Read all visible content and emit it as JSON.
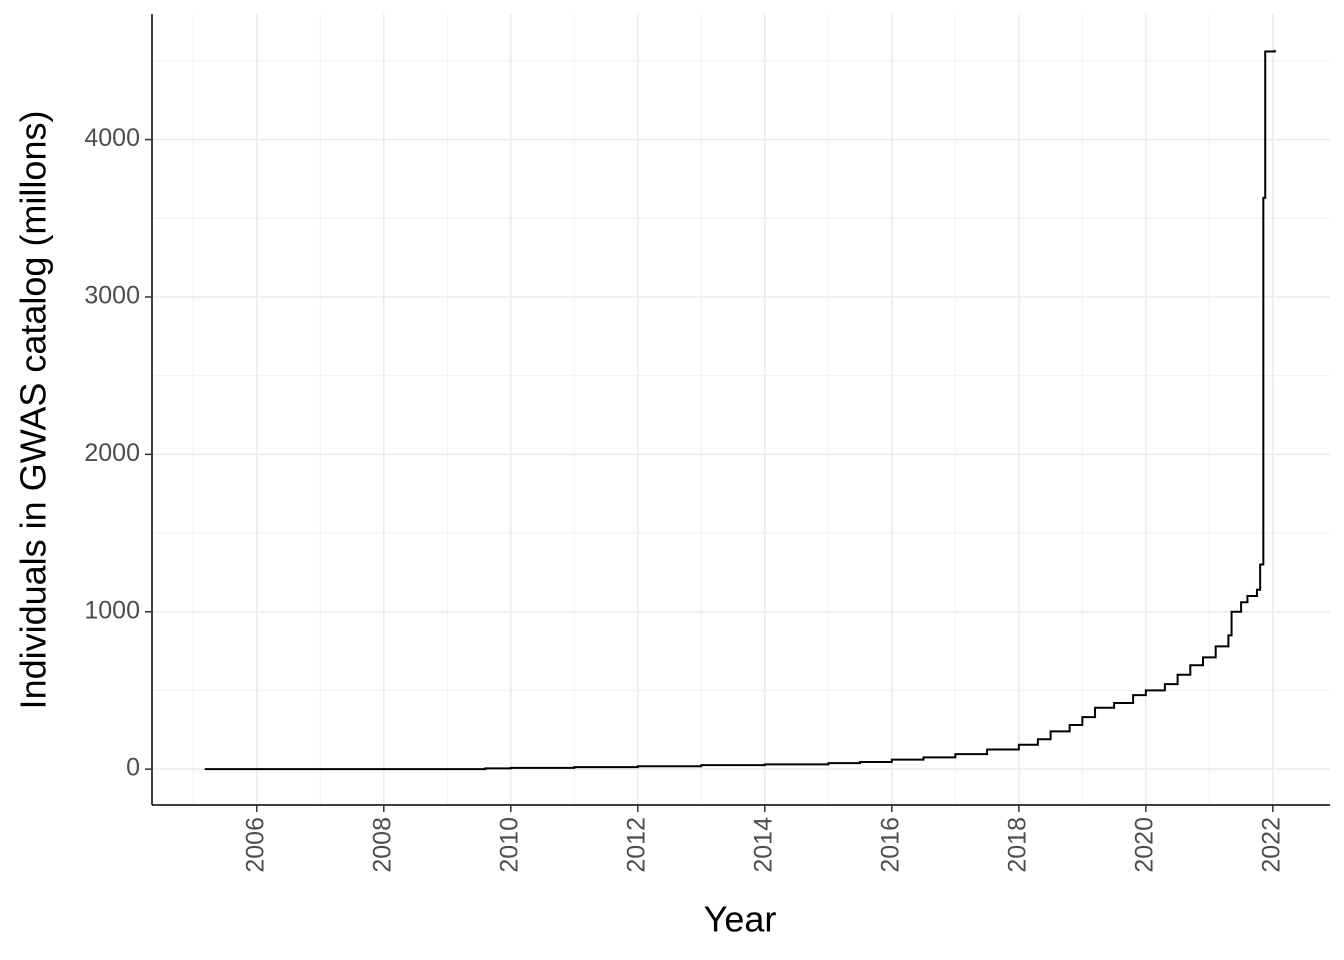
{
  "chart_data": {
    "type": "step",
    "x_label": "Year",
    "y_label": "Individuals in GWAS catalog (millons)",
    "x": [
      2005.18,
      2009.6,
      2010,
      2011,
      2012,
      2013,
      2014,
      2015,
      2015.5,
      2016,
      2016.5,
      2017,
      2017.5,
      2018,
      2018.3,
      2018.5,
      2018.8,
      2019,
      2019.2,
      2019.5,
      2019.8,
      2020,
      2020.3,
      2020.5,
      2020.7,
      2020.9,
      2021.1,
      2021.3,
      2021.35,
      2021.5,
      2021.6,
      2021.75,
      2021.8,
      2021.85,
      2021.88,
      2022.03
    ],
    "series": [
      {
        "name": "Individuals",
        "color": "#000000",
        "values": [
          0,
          5,
          8,
          13,
          18,
          25,
          30,
          38,
          45,
          60,
          75,
          95,
          125,
          155,
          190,
          240,
          280,
          330,
          390,
          420,
          470,
          500,
          540,
          600,
          660,
          710,
          780,
          850,
          1000,
          1060,
          1100,
          1140,
          1300,
          3630,
          4560,
          4570
        ]
      }
    ],
    "xlim": [
      2004.35,
      2022.9
    ],
    "ylim": [
      -228,
      4798
    ],
    "xticks": [
      2006,
      2008,
      2010,
      2012,
      2014,
      2016,
      2018,
      2020,
      2022
    ],
    "yticks": [
      0,
      1000,
      2000,
      3000,
      4000
    ],
    "x_minor_ticks": [
      2005,
      2007,
      2009,
      2011,
      2013,
      2015,
      2017,
      2019,
      2021
    ],
    "y_minor_ticks": [
      500,
      1500,
      2500,
      3500,
      4500
    ],
    "grid": true
  }
}
